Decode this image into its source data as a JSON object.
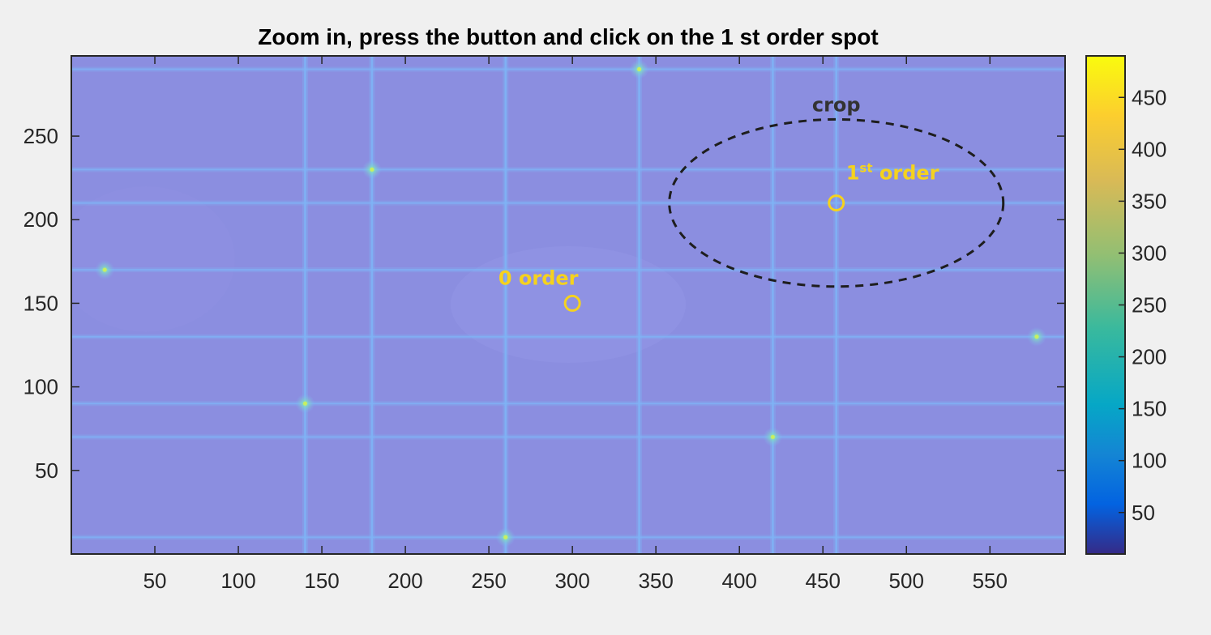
{
  "chart_data": {
    "type": "heatmap",
    "title": "Zoom in, press the button and click on the 1 st order spot",
    "xlabel": "",
    "ylabel": "",
    "xlim": [
      0,
      595
    ],
    "ylim": [
      0,
      298
    ],
    "x_ticks": [
      50,
      100,
      150,
      200,
      250,
      300,
      350,
      400,
      450,
      500,
      550
    ],
    "y_ticks": [
      50,
      100,
      150,
      200,
      250
    ],
    "colorbar": {
      "colormap": "parula",
      "range": [
        10,
        490
      ],
      "ticks": [
        50,
        100,
        150,
        200,
        250,
        300,
        350,
        400,
        450
      ]
    },
    "bright_vertical_lines_x": [
      140,
      180,
      260,
      340,
      420,
      458
    ],
    "bright_horizontal_lines_y": [
      10,
      70,
      90,
      130,
      170,
      210,
      230,
      290
    ],
    "bright_spots": [
      {
        "x": 180,
        "y": 230
      },
      {
        "x": 140,
        "y": 90
      },
      {
        "x": 420,
        "y": 70
      },
      {
        "x": 260,
        "y": 10
      },
      {
        "x": 340,
        "y": 290
      },
      {
        "x": 20,
        "y": 170
      },
      {
        "x": 578,
        "y": 130
      }
    ],
    "annotations": [
      {
        "label": "0 order",
        "x": 300,
        "y": 150,
        "color": "#f5d21e"
      },
      {
        "label_main": "1",
        "label_sup": "st",
        "label_rest": " order",
        "x": 458,
        "y": 210,
        "color": "#f5d21e"
      },
      {
        "label": "crop",
        "x": 458,
        "y": 210,
        "rx": 100,
        "ry": 50,
        "style": "dashed-ellipse"
      }
    ]
  },
  "colors": {
    "background": "#8b8ee0",
    "grid_line": "#7fb4f6",
    "spot": "#c7f060",
    "annotation": "#f5d21e",
    "crop_ellipse": "#1e1e1e",
    "axis": "#262626"
  }
}
